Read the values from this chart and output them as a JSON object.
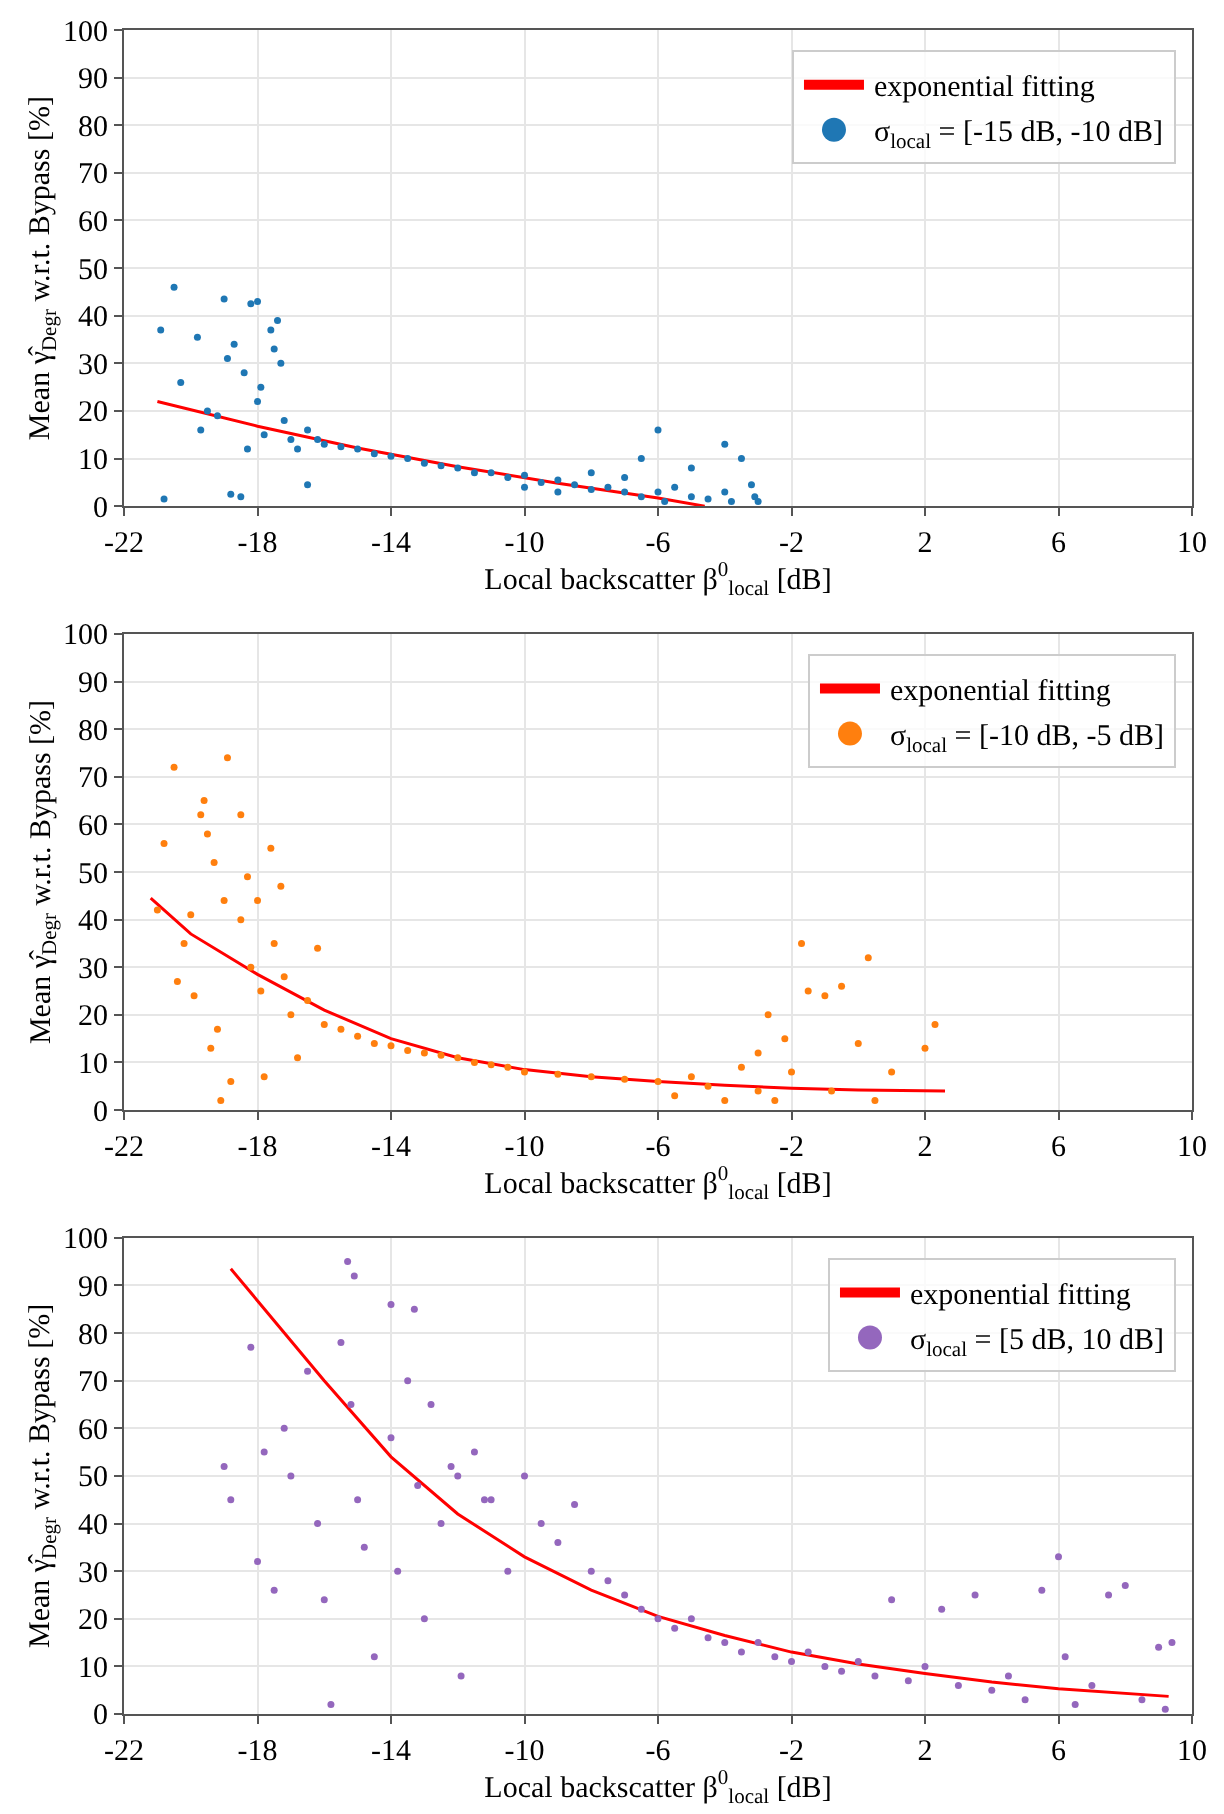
{
  "chart_data": [
    {
      "type": "scatter",
      "xlabel": "Local backscatter β$^{0}$$_{local}$ [dB]",
      "ylabel": "Mean γ̂$_{Degr}$ w.r.t. Bypass [%]",
      "xlim": [
        -22,
        10
      ],
      "xticks": [
        -22,
        -18,
        -14,
        -10,
        -6,
        -2,
        2,
        6,
        10
      ],
      "ylim": [
        0,
        100
      ],
      "yticks": [
        0,
        10,
        20,
        30,
        40,
        50,
        60,
        70,
        80,
        90,
        100
      ],
      "grid": true,
      "legend": "top right",
      "series": [
        {
          "name": "exponential fitting",
          "type": "line",
          "marker": "none",
          "color": "#ff0000",
          "x": [
            -21,
            -18,
            -15,
            -12,
            -9,
            -6,
            -4.6
          ],
          "values": [
            22,
            16.8,
            12.2,
            8.3,
            4.8,
            1.7,
            0
          ]
        },
        {
          "name": "σ$_{local}$ = [-15 dB, -10 dB]",
          "marker": "circle",
          "color": "#1f77b4",
          "x": [
            -20.9,
            -20.8,
            -20.5,
            -20.3,
            -19.8,
            -19.7,
            -19.5,
            -19.2,
            -19,
            -18.9,
            -18.8,
            -18.7,
            -18.5,
            -18.4,
            -18.3,
            -18.2,
            -18,
            -18,
            -17.9,
            -17.8,
            -17.6,
            -17.5,
            -17.4,
            -17.3,
            -17.2,
            -17,
            -16.8,
            -16.5,
            -16.5,
            -16.2,
            -16,
            -15.5,
            -15,
            -14.5,
            -14,
            -13.5,
            -13,
            -12.5,
            -12,
            -11.5,
            -11,
            -10.5,
            -10,
            -10,
            -9.5,
            -9,
            -9,
            -8.5,
            -8,
            -8,
            -7.5,
            -7,
            -7,
            -6.5,
            -6.5,
            -6,
            -6,
            -5.8,
            -5.5,
            -5,
            -5,
            -4.5,
            -4,
            -4,
            -3.8,
            -3.5,
            -3.2,
            -3.1,
            -3
          ],
          "values": [
            37,
            1.5,
            46,
            26,
            35.5,
            16,
            20,
            19,
            43.5,
            31,
            2.5,
            34,
            2,
            28,
            12,
            42.5,
            43,
            22,
            25,
            15,
            37,
            33,
            39,
            30,
            18,
            14,
            12,
            4.5,
            16,
            14,
            13,
            12.5,
            12,
            11,
            10.5,
            10,
            9,
            8.5,
            8,
            7,
            7,
            6,
            6.5,
            4,
            5,
            5.5,
            3,
            4.5,
            3.5,
            7,
            4,
            3,
            6,
            2,
            10,
            16,
            3,
            1,
            4,
            2,
            8,
            1.5,
            3,
            13,
            1,
            10,
            4.5,
            2,
            1
          ]
        }
      ]
    },
    {
      "type": "scatter",
      "xlabel": "Local backscatter β$^{0}$$_{local}$ [dB]",
      "ylabel": "Mean γ̂$_{Degr}$ w.r.t. Bypass [%]",
      "xlim": [
        -22,
        10
      ],
      "xticks": [
        -22,
        -18,
        -14,
        -10,
        -6,
        -2,
        2,
        6,
        10
      ],
      "ylim": [
        0,
        100
      ],
      "yticks": [
        0,
        10,
        20,
        30,
        40,
        50,
        60,
        70,
        80,
        90,
        100
      ],
      "grid": true,
      "legend": "top right",
      "series": [
        {
          "name": "exponential fitting",
          "type": "line",
          "marker": "none",
          "color": "#ff0000",
          "x": [
            -21.2,
            -20,
            -18,
            -16,
            -14,
            -12,
            -10,
            -8,
            -6,
            -4,
            -2,
            0,
            2.6
          ],
          "values": [
            44.5,
            37,
            28.5,
            21,
            15,
            11,
            8.5,
            7,
            6,
            5.2,
            4.6,
            4.2,
            4
          ]
        },
        {
          "name": "σ$_{local}$ = [-10 dB, -5 dB]",
          "marker": "circle",
          "color": "#ff7f0e",
          "x": [
            -21,
            -20.8,
            -20.5,
            -20.4,
            -20.2,
            -20,
            -19.9,
            -19.7,
            -19.6,
            -19.5,
            -19.4,
            -19.3,
            -19.2,
            -19.1,
            -19,
            -18.9,
            -18.8,
            -18.5,
            -18.5,
            -18.3,
            -18.2,
            -18,
            -17.9,
            -17.8,
            -17.6,
            -17.5,
            -17.3,
            -17.2,
            -17,
            -16.8,
            -16.5,
            -16.2,
            -16,
            -15.5,
            -15,
            -14.5,
            -14,
            -13.5,
            -13,
            -12.5,
            -12,
            -11.5,
            -11,
            -10.5,
            -10,
            -9,
            -8,
            -7,
            -6,
            -5.5,
            -5,
            -4.5,
            -4,
            -3.5,
            -3,
            -3,
            -2.7,
            -2.5,
            -2.2,
            -2,
            -1.7,
            -1.5,
            -1,
            -0.8,
            -0.5,
            0,
            0.3,
            0.5,
            1,
            2,
            2.3
          ],
          "values": [
            42,
            56,
            72,
            27,
            35,
            41,
            24,
            62,
            65,
            58,
            13,
            52,
            17,
            2,
            44,
            74,
            6,
            62,
            40,
            49,
            30,
            44,
            25,
            7,
            55,
            35,
            47,
            28,
            20,
            11,
            23,
            34,
            18,
            17,
            15.5,
            14,
            13.5,
            12.5,
            12,
            11.5,
            11,
            10,
            9.5,
            9,
            8,
            7.5,
            7,
            6.5,
            6,
            3,
            7,
            5,
            2,
            9,
            4,
            12,
            20,
            2,
            15,
            8,
            35,
            25,
            24,
            4,
            26,
            14,
            32,
            2,
            8,
            13,
            18
          ]
        }
      ]
    },
    {
      "type": "scatter",
      "xlabel": "Local backscatter β$^{0}$$_{local}$ [dB]",
      "ylabel": "Mean γ̂$_{Degr}$ w.r.t. Bypass [%]",
      "xlim": [
        -22,
        10
      ],
      "xticks": [
        -22,
        -18,
        -14,
        -10,
        -6,
        -2,
        2,
        6,
        10
      ],
      "ylim": [
        0,
        100
      ],
      "yticks": [
        0,
        10,
        20,
        30,
        40,
        50,
        60,
        70,
        80,
        90,
        100
      ],
      "grid": true,
      "legend": "top right",
      "series": [
        {
          "name": "exponential fitting",
          "type": "line",
          "marker": "none",
          "color": "#ff0000",
          "x": [
            -18.8,
            -16,
            -14,
            -12,
            -10,
            -8,
            -6,
            -4,
            -2,
            0,
            2,
            4,
            6,
            9.3
          ],
          "values": [
            93.5,
            70,
            54,
            42,
            33,
            26,
            20.5,
            16.5,
            13,
            10.5,
            8.5,
            6.7,
            5.3,
            3.7
          ]
        },
        {
          "name": "σ$_{local}$ = [5 dB, 10 dB]",
          "marker": "circle",
          "color": "#9467bd",
          "x": [
            -19,
            -18.8,
            -18.2,
            -18,
            -17.8,
            -17.5,
            -17.2,
            -17,
            -16.5,
            -16.2,
            -16,
            -15.8,
            -15.5,
            -15.3,
            -15.2,
            -15.1,
            -15,
            -14.8,
            -14.5,
            -14,
            -14,
            -13.8,
            -13.5,
            -13.3,
            -13.2,
            -13,
            -12.8,
            -12.5,
            -12.2,
            -12,
            -11.9,
            -11.5,
            -11.2,
            -11,
            -10.5,
            -10,
            -9.5,
            -9,
            -8.5,
            -8,
            -7.5,
            -7,
            -6.5,
            -6,
            -5.5,
            -5,
            -4.5,
            -4,
            -3.5,
            -3,
            -2.5,
            -2,
            -1.5,
            -1,
            -0.5,
            0,
            0.5,
            1,
            1.5,
            2,
            2.5,
            3,
            3.5,
            4,
            4.5,
            5,
            5.5,
            6,
            6.2,
            6.5,
            7,
            7.5,
            8,
            8.5,
            9,
            9.2,
            9.4
          ],
          "values": [
            52,
            45,
            77,
            32,
            55,
            26,
            60,
            50,
            72,
            40,
            24,
            2,
            78,
            95,
            65,
            92,
            45,
            35,
            12,
            58,
            86,
            30,
            70,
            85,
            48,
            20,
            65,
            40,
            52,
            50,
            8,
            55,
            45,
            45,
            30,
            50,
            40,
            36,
            44,
            30,
            28,
            25,
            22,
            20,
            18,
            20,
            16,
            15,
            13,
            15,
            12,
            11,
            13,
            10,
            9,
            11,
            8,
            24,
            7,
            10,
            22,
            6,
            25,
            5,
            8,
            3,
            26,
            33,
            12,
            2,
            6,
            25,
            27,
            3,
            14,
            1,
            15
          ]
        }
      ]
    }
  ]
}
